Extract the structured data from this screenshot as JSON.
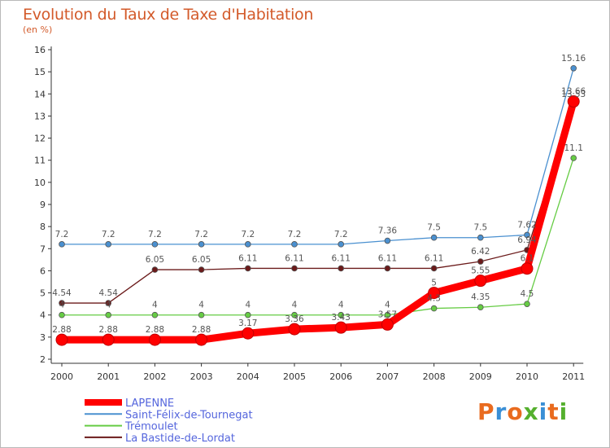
{
  "chart_data": {
    "type": "line",
    "title": "Evolution du Taux de Taxe d'Habitation",
    "subtitle": "(en %)",
    "x": [
      "2000",
      "2001",
      "2002",
      "2003",
      "2004",
      "2005",
      "2006",
      "2007",
      "2008",
      "2009",
      "2010",
      "2011"
    ],
    "ylim": [
      2,
      16
    ],
    "yticks": [
      2,
      3,
      4,
      5,
      6,
      7,
      8,
      9,
      10,
      11,
      12,
      13,
      14,
      15,
      16
    ],
    "grid": false,
    "legend_position": "bottom-left",
    "series": [
      {
        "name": "LAPENNE",
        "color": "#ff0000",
        "values": [
          2.88,
          2.88,
          2.88,
          2.88,
          3.17,
          3.36,
          3.43,
          3.57,
          5,
          5.55,
          6.1,
          13.66
        ],
        "labels": [
          "2.88",
          "2.88",
          "2.88",
          "2.88",
          "3.17",
          "3.36",
          "3.43",
          "3.57",
          "5",
          "5.55",
          "6.1",
          "13.66"
        ]
      },
      {
        "name": "Saint-Félix-de-Tournegat",
        "color": "#4a90d0",
        "values": [
          7.2,
          7.2,
          7.2,
          7.2,
          7.2,
          7.2,
          7.2,
          7.36,
          7.5,
          7.5,
          7.62,
          15.16
        ],
        "labels": [
          "7.2",
          "7.2",
          "7.2",
          "7.2",
          "7.2",
          "7.2",
          "7.2",
          "7.36",
          "7.5",
          "7.5",
          "7.62",
          "15.16"
        ]
      },
      {
        "name": "Trémoulet",
        "color": "#66cc44",
        "values": [
          4,
          4,
          4,
          4,
          4,
          4,
          4,
          4,
          4.3,
          4.35,
          4.5,
          11.1
        ],
        "labels": [
          "4",
          "4",
          "4",
          "4",
          "4",
          "4",
          "4",
          "4",
          "4.3",
          "4.35",
          "4.5",
          "11.1"
        ]
      },
      {
        "name": "La Bastide-de-Lordat",
        "color": "#6b1a1a",
        "values": [
          4.54,
          4.54,
          6.05,
          6.05,
          6.11,
          6.11,
          6.11,
          6.11,
          6.11,
          6.42,
          6.94,
          13.53
        ],
        "labels": [
          "4.54",
          "4.54",
          "6.05",
          "6.05",
          "6.11",
          "6.11",
          "6.11",
          "6.11",
          "6.11",
          "6.42",
          "6.94",
          "13.53"
        ]
      }
    ]
  },
  "logo": {
    "text": "Proxiti",
    "letters": [
      "P",
      "r",
      "o",
      "x",
      "i",
      "t",
      "i"
    ],
    "colors": [
      "#e96b1f",
      "#3a8fd6",
      "#e96b1f",
      "#55b02e",
      "#3a8fd6",
      "#e96b1f",
      "#55b02e"
    ]
  }
}
